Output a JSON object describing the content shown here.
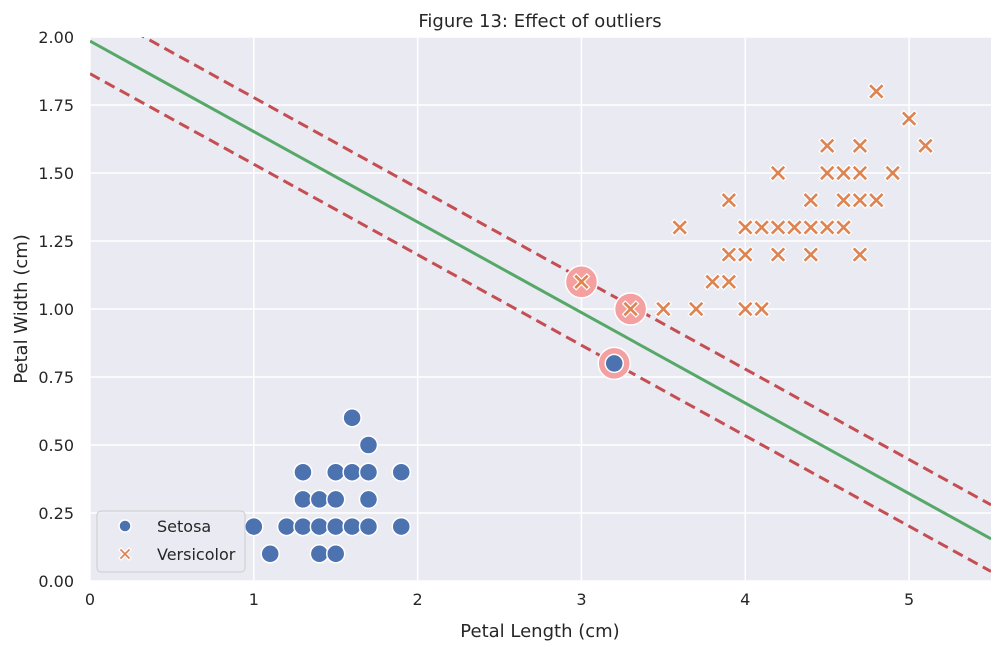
{
  "chart_data": {
    "type": "scatter",
    "title": "Figure 13: Effect of outliers",
    "xlabel": "Petal Length (cm)",
    "ylabel": "Petal Width (cm)",
    "xlim": [
      0,
      5.5
    ],
    "ylim": [
      0,
      2.0
    ],
    "xticks": [
      0,
      1,
      2,
      3,
      4,
      5
    ],
    "xtick_labels": [
      "0",
      "1",
      "2",
      "3",
      "4",
      "5"
    ],
    "yticks": [
      0,
      0.25,
      0.5,
      0.75,
      1.0,
      1.25,
      1.5,
      1.75,
      2.0
    ],
    "ytick_labels": [
      "0.00",
      "0.25",
      "0.50",
      "0.75",
      "1.00",
      "1.25",
      "1.50",
      "1.75",
      "2.00"
    ],
    "grid": true,
    "legend_position": "lower-left",
    "series": [
      {
        "name": "Setosa",
        "marker": "circle",
        "color": "#4c72b0",
        "points": [
          [
            1.0,
            0.2
          ],
          [
            1.1,
            0.1
          ],
          [
            1.2,
            0.2
          ],
          [
            1.3,
            0.2
          ],
          [
            1.3,
            0.3
          ],
          [
            1.3,
            0.4
          ],
          [
            1.4,
            0.1
          ],
          [
            1.4,
            0.2
          ],
          [
            1.4,
            0.3
          ],
          [
            1.5,
            0.1
          ],
          [
            1.5,
            0.2
          ],
          [
            1.5,
            0.3
          ],
          [
            1.5,
            0.4
          ],
          [
            1.6,
            0.2
          ],
          [
            1.6,
            0.4
          ],
          [
            1.6,
            0.6
          ],
          [
            1.7,
            0.2
          ],
          [
            1.7,
            0.3
          ],
          [
            1.7,
            0.4
          ],
          [
            1.7,
            0.5
          ],
          [
            1.9,
            0.2
          ],
          [
            1.9,
            0.4
          ],
          [
            3.2,
            0.8
          ]
        ]
      },
      {
        "name": "Versicolor",
        "marker": "x",
        "color": "#dd8452",
        "points": [
          [
            3.0,
            1.1
          ],
          [
            3.3,
            1.0
          ],
          [
            3.5,
            1.0
          ],
          [
            3.6,
            1.3
          ],
          [
            3.7,
            1.0
          ],
          [
            3.8,
            1.1
          ],
          [
            3.9,
            1.1
          ],
          [
            3.9,
            1.2
          ],
          [
            3.9,
            1.4
          ],
          [
            4.0,
            1.0
          ],
          [
            4.0,
            1.2
          ],
          [
            4.0,
            1.3
          ],
          [
            4.1,
            1.0
          ],
          [
            4.1,
            1.3
          ],
          [
            4.2,
            1.2
          ],
          [
            4.2,
            1.3
          ],
          [
            4.2,
            1.5
          ],
          [
            4.3,
            1.3
          ],
          [
            4.4,
            1.2
          ],
          [
            4.4,
            1.3
          ],
          [
            4.4,
            1.4
          ],
          [
            4.5,
            1.3
          ],
          [
            4.5,
            1.5
          ],
          [
            4.5,
            1.6
          ],
          [
            4.6,
            1.3
          ],
          [
            4.6,
            1.4
          ],
          [
            4.6,
            1.5
          ],
          [
            4.7,
            1.2
          ],
          [
            4.7,
            1.4
          ],
          [
            4.7,
            1.5
          ],
          [
            4.7,
            1.6
          ],
          [
            4.8,
            1.4
          ],
          [
            4.8,
            1.8
          ],
          [
            4.9,
            1.5
          ],
          [
            5.0,
            1.7
          ],
          [
            5.1,
            1.6
          ]
        ]
      }
    ],
    "support_vectors": {
      "color": "#f4a0a0",
      "points": [
        [
          3.0,
          1.1
        ],
        [
          3.3,
          1.0
        ],
        [
          3.2,
          0.8
        ]
      ]
    },
    "decision_boundary": {
      "color": "#55a868",
      "style": "solid",
      "points": [
        [
          0,
          1.985
        ],
        [
          5.5,
          0.155
        ]
      ]
    },
    "margins": {
      "color": "#c44e52",
      "style": "dashed",
      "lines": [
        [
          [
            0,
            2.11
          ],
          [
            5.5,
            0.28
          ]
        ],
        [
          [
            0,
            1.865
          ],
          [
            5.5,
            0.035
          ]
        ]
      ]
    }
  },
  "colors": {
    "plot_background": "#eaeaf2",
    "grid": "#ffffff"
  }
}
